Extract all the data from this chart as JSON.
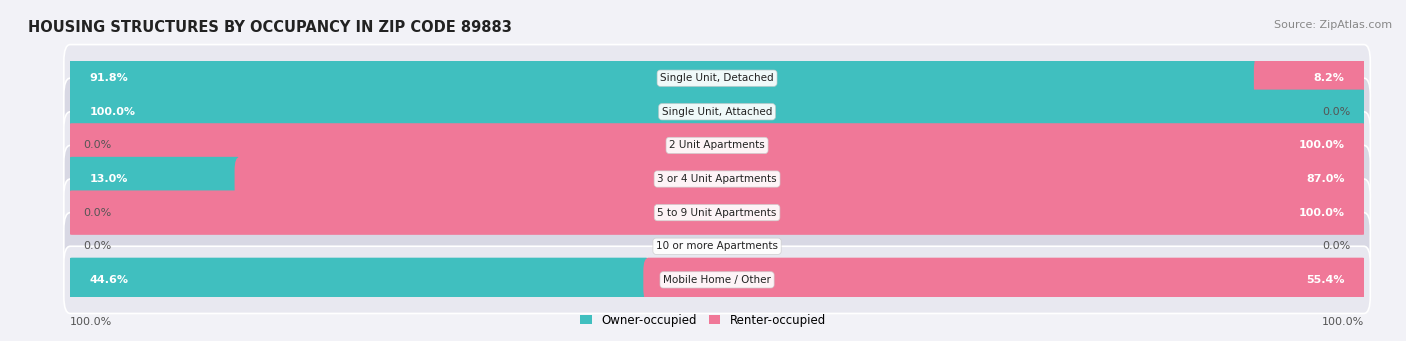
{
  "title": "HOUSING STRUCTURES BY OCCUPANCY IN ZIP CODE 89883",
  "source": "Source: ZipAtlas.com",
  "categories": [
    "Single Unit, Detached",
    "Single Unit, Attached",
    "2 Unit Apartments",
    "3 or 4 Unit Apartments",
    "5 to 9 Unit Apartments",
    "10 or more Apartments",
    "Mobile Home / Other"
  ],
  "owner_pct": [
    91.8,
    100.0,
    0.0,
    13.0,
    0.0,
    0.0,
    44.6
  ],
  "renter_pct": [
    8.2,
    0.0,
    100.0,
    87.0,
    100.0,
    0.0,
    55.4
  ],
  "owner_color": "#40bfbf",
  "renter_color": "#f07898",
  "owner_label": "Owner-occupied",
  "renter_label": "Renter-occupied",
  "bg_color": "#f2f2f7",
  "row_color_even": "#e8e8f0",
  "row_color_odd": "#d8d8e4",
  "title_fontsize": 10.5,
  "source_fontsize": 8,
  "bar_label_fontsize": 8,
  "cat_label_fontsize": 7.5,
  "tick_fontsize": 8,
  "axis_label_left": "100.0%",
  "axis_label_right": "100.0%"
}
